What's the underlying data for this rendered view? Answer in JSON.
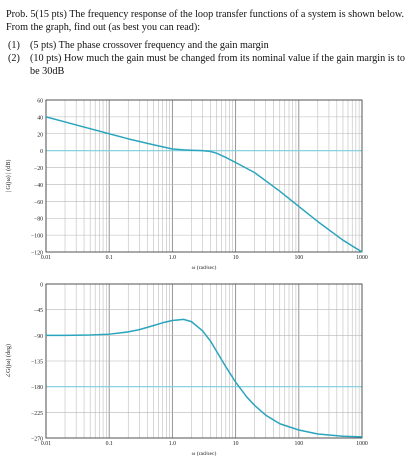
{
  "problem": {
    "intro": "Prob. 5(15 pts) The frequency response of the loop transfer functions of a system is shown below. From the graph, find out (as best you can read):",
    "parts": [
      {
        "num": "(1)",
        "text": "(5 pts) The phase crossover frequency and the gain margin"
      },
      {
        "num": "(2)",
        "text": "(10 pts) How much the gain must be changed from its nominal value if the gain margin is to be 30dB"
      }
    ]
  },
  "colors": {
    "curve": "#2aa5bd",
    "reference_line": "#7fd0de",
    "grid": "#b7b7b7",
    "axis": "#444444"
  },
  "chart_data": [
    {
      "type": "line",
      "ylabel": "| G(jω) | (dB)",
      "xlabel": "ω (rad/sec)",
      "x_scale": "log",
      "xlim": [
        0.01,
        1000
      ],
      "ylim": [
        -120,
        60
      ],
      "x_ticks": [
        0.01,
        0.1,
        1.0,
        10,
        100,
        1000
      ],
      "x_tick_labels": [
        "0.01",
        "0.1",
        "1.0",
        "10",
        "100",
        "1000"
      ],
      "y_ticks": [
        60,
        40,
        20,
        0,
        -20,
        -40,
        -60,
        -80,
        -100,
        -120
      ],
      "y_tick_labels": [
        "60",
        "40",
        "20",
        "0",
        "−20",
        "−40",
        "−60",
        "−80",
        "−100",
        "−120"
      ],
      "reference_line": 0,
      "grid": true,
      "series": [
        {
          "x": [
            0.01,
            0.02,
            0.05,
            0.1,
            0.2,
            0.5,
            1.0,
            1.5,
            2.0,
            3.0,
            4.0,
            5.0,
            7.0,
            10,
            20,
            50,
            100,
            200,
            500,
            1000
          ],
          "values": [
            40,
            34,
            26,
            20,
            14,
            7,
            2,
            1,
            0.5,
            0,
            -1,
            -3,
            -8,
            -14,
            -26,
            -48,
            -66,
            -84,
            -106,
            -120
          ]
        }
      ]
    },
    {
      "type": "line",
      "ylabel": "∠G(jω) (deg)",
      "xlabel": "ω (rad/sec)",
      "x_scale": "log",
      "xlim": [
        0.01,
        1000
      ],
      "ylim": [
        -270,
        0
      ],
      "x_ticks": [
        0.01,
        0.1,
        1.0,
        10,
        100,
        1000
      ],
      "x_tick_labels": [
        "0.01",
        "0.1",
        "1.0",
        "10",
        "100",
        "1000"
      ],
      "y_ticks": [
        0,
        -45,
        -90,
        -135,
        -180,
        -225,
        -270
      ],
      "y_tick_labels": [
        "0",
        "−45",
        "−90",
        "−135",
        "−180",
        "−225",
        "−270"
      ],
      "reference_line": -180,
      "grid": true,
      "series": [
        {
          "x": [
            0.01,
            0.02,
            0.05,
            0.1,
            0.2,
            0.3,
            0.5,
            0.7,
            1.0,
            1.5,
            2.0,
            3.0,
            4.0,
            5.0,
            7.0,
            10,
            15,
            20,
            30,
            50,
            100,
            200,
            500,
            1000
          ],
          "values": [
            -90,
            -90,
            -89.5,
            -88,
            -84,
            -80,
            -73,
            -68,
            -64,
            -62,
            -66,
            -82,
            -100,
            -118,
            -145,
            -172,
            -198,
            -213,
            -230,
            -245,
            -256,
            -263,
            -267,
            -268
          ]
        }
      ]
    }
  ]
}
